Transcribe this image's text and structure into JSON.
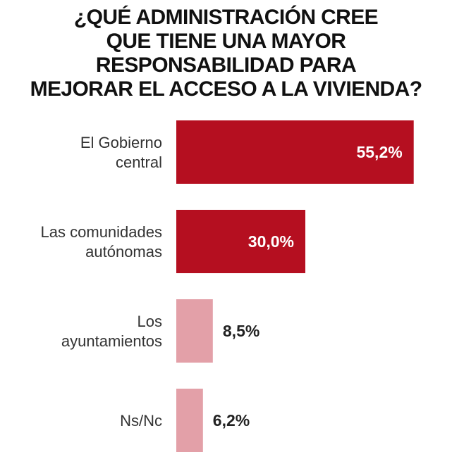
{
  "title_lines": [
    "¿QUÉ ADMINISTRACIÓN CREE",
    "QUE TIENE  UNA MAYOR",
    "RESPONSABILIDAD PARA",
    "MEJORAR EL ACCESO A LA VIVIENDA?"
  ],
  "chart_data": {
    "type": "bar",
    "orientation": "horizontal",
    "title": "¿QUÉ ADMINISTRACIÓN CREE QUE TIENE  UNA MAYOR RESPONSABILIDAD PARA MEJORAR EL ACCESO A LA VIVIENDA?",
    "categories": [
      [
        "El Gobierno",
        "central"
      ],
      [
        "Las comunidades",
        "autónomas"
      ],
      [
        "Los",
        "ayuntamientos"
      ],
      [
        "Ns/Nc"
      ]
    ],
    "values": [
      55.2,
      30.0,
      8.5,
      6.2
    ],
    "value_labels": [
      "55,2%",
      "30,0%",
      "8,5%",
      "6,2%"
    ],
    "colors": [
      "#b50f20",
      "#b50f20",
      "#e3a0a8",
      "#e3a0a8"
    ],
    "label_colors": [
      "#ffffff",
      "#ffffff",
      "#222222",
      "#222222"
    ],
    "label_inside": [
      true,
      true,
      false,
      false
    ],
    "xlim": [
      0,
      60
    ],
    "grid": false,
    "legend": "none"
  }
}
